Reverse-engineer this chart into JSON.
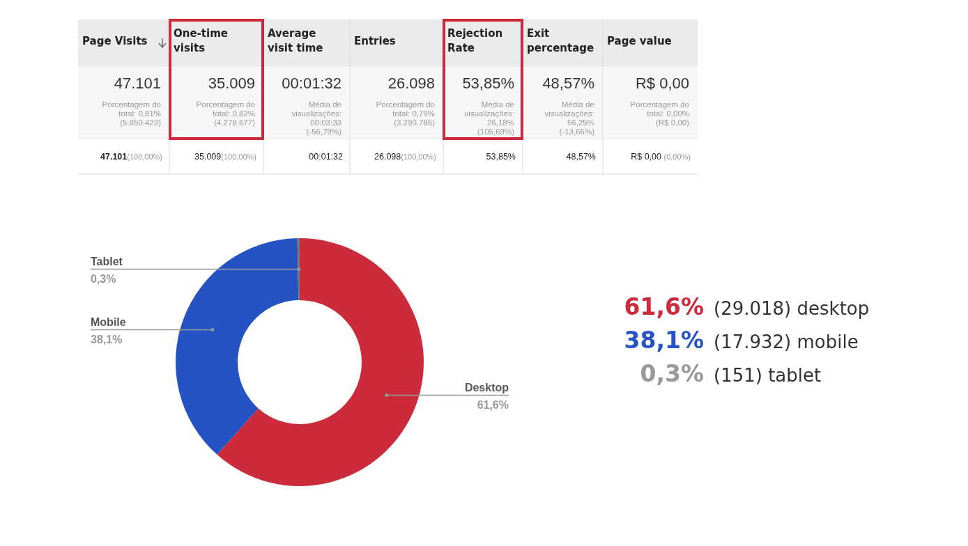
{
  "chart_data": [
    {
      "type": "other",
      "annotations": [
        "Page Visits",
        "One-time\nvisits",
        "Average\nvisit time",
        "Entries",
        "Rejection\nRate",
        "Exit\npercentage",
        "Page value",
        "47.101\nPorcentagem do\ntotal: 0,81%\n(5.850.423)",
        "35.009\nPorcentagem do\ntotal: 0,82%\n(4.278.677)",
        "00:01:32\nMédia de\nvisualizações:\n00:03:33\n(-56,79%)",
        "26.098\nPorcentagem do\ntotal: 0,79%\n(3.290.786)",
        "53,85%\nMédia de\nvisualizações:\n26,18%\n(105,69%)",
        "48,57%\nMédia de\nvisualizações:\n56,25%\n(-13,66%)",
        "R$ 0,00\nPorcentagem do\ntotal: 0,00%\n(R$ 0,00)",
        "47.101(100,00%)",
        "35.009(100,00%)",
        "00:01:32",
        "26.098(100,00%)",
        "53,85%",
        "48,57%",
        "R$ 0,00 (0,00%)"
      ]
    },
    {
      "type": "donut",
      "categories": [
        "Desktop",
        "Mobile",
        "Tablet"
      ],
      "values": [
        61.6,
        38.1,
        0.3
      ],
      "colors": [
        "#cc2b3b",
        "#2653c4",
        "#777777"
      ],
      "value_labels": [
        "61,6%",
        "38,1%",
        "0,3%"
      ],
      "legend": false,
      "annotations": [
        "61,6% (29.018) desktop",
        "38,1% (17.932) mobile",
        "0,3% (151) tablet"
      ]
    }
  ]
}
